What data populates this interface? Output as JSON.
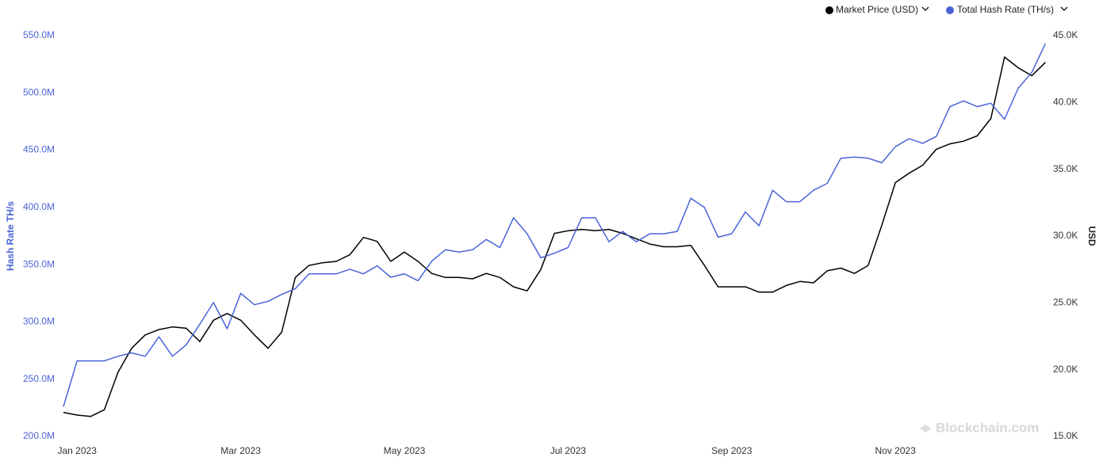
{
  "chart_data": {
    "type": "line",
    "y_label": "Hash Rate TH/s",
    "y2_label": "USD",
    "watermark": "Blockchain.com",
    "grid": false,
    "legend": "top-right",
    "categories": [
      null,
      "Jan 2023",
      null,
      null,
      null,
      null,
      null,
      null,
      null,
      null,
      null,
      null,
      null,
      "Mar 2023",
      null,
      null,
      null,
      null,
      null,
      null,
      null,
      null,
      null,
      null,
      null,
      "May 2023",
      null,
      null,
      null,
      null,
      null,
      null,
      null,
      null,
      null,
      null,
      null,
      "Jul 2023",
      null,
      null,
      null,
      null,
      null,
      null,
      null,
      null,
      null,
      null,
      null,
      "Sep 2023",
      null,
      null,
      null,
      null,
      null,
      null,
      null,
      null,
      null,
      null,
      null,
      "Nov 2023",
      null,
      null,
      null,
      null,
      null,
      null,
      null,
      null,
      null,
      null,
      null
    ],
    "ylim": [
      200000000,
      550000000
    ],
    "yticks": [
      {
        "value": 200000000,
        "label": "200.0M"
      },
      {
        "value": 250000000,
        "label": "250.0M"
      },
      {
        "value": 300000000,
        "label": "300.0M"
      },
      {
        "value": 350000000,
        "label": "350.0M"
      },
      {
        "value": 400000000,
        "label": "400.0M"
      },
      {
        "value": 450000000,
        "label": "450.0M"
      },
      {
        "value": 500000000,
        "label": "500.0M"
      },
      {
        "value": 550000000,
        "label": "550.0M"
      }
    ],
    "y2lim": [
      15000,
      45000
    ],
    "y2ticks": [
      {
        "value": 15000,
        "label": "15.0K"
      },
      {
        "value": 20000,
        "label": "20.0K"
      },
      {
        "value": 25000,
        "label": "25.0K"
      },
      {
        "value": 30000,
        "label": "30.0K"
      },
      {
        "value": 35000,
        "label": "35.0K"
      },
      {
        "value": 40000,
        "label": "40.0K"
      },
      {
        "value": 45000,
        "label": "45.0K"
      }
    ],
    "series": [
      {
        "name": "Market Price (USD)",
        "color": "#000000",
        "axis": "y2",
        "values": [
          16800,
          16600,
          16500,
          17000,
          19800,
          21600,
          22600,
          23000,
          23200,
          23100,
          22100,
          23700,
          24200,
          23700,
          22600,
          21600,
          22800,
          26900,
          27800,
          28000,
          28100,
          28600,
          29900,
          29600,
          28100,
          28800,
          28100,
          27200,
          26900,
          26900,
          26800,
          27200,
          26900,
          26200,
          25900,
          27500,
          30200,
          30400,
          30500,
          30400,
          30500,
          30200,
          29800,
          29400,
          29200,
          29200,
          29300,
          27800,
          26200,
          26200,
          26200,
          25800,
          25800,
          26300,
          26600,
          26500,
          27400,
          27600,
          27200,
          27800,
          30800,
          34000,
          34700,
          35300,
          36500,
          36900,
          37100,
          37500,
          38800,
          43400,
          42600,
          42000,
          43000
        ]
      },
      {
        "name": "Total Hash Rate (TH/s)",
        "color": "#4a63d8",
        "values": [
          226000000,
          266000000,
          266000000,
          266000000,
          270000000,
          273000000,
          270000000,
          287000000,
          270000000,
          280000000,
          298000000,
          317000000,
          294000000,
          325000000,
          315000000,
          318000000,
          324000000,
          329000000,
          342000000,
          342000000,
          342000000,
          346000000,
          342000000,
          349000000,
          339000000,
          342000000,
          336000000,
          353000000,
          363000000,
          361000000,
          363000000,
          372000000,
          365000000,
          391000000,
          377000000,
          356000000,
          360000000,
          365000000,
          391000000,
          391000000,
          370000000,
          379000000,
          370000000,
          377000000,
          377000000,
          379000000,
          408000000,
          400000000,
          374000000,
          377000000,
          396000000,
          384000000,
          415000000,
          405000000,
          405000000,
          415000000,
          421000000,
          443000000,
          444000000,
          443000000,
          439000000,
          453000000,
          460000000,
          456000000,
          462000000,
          488000000,
          493000000,
          488000000,
          491000000,
          477000000,
          504000000,
          518000000,
          543000000
        ]
      }
    ]
  }
}
